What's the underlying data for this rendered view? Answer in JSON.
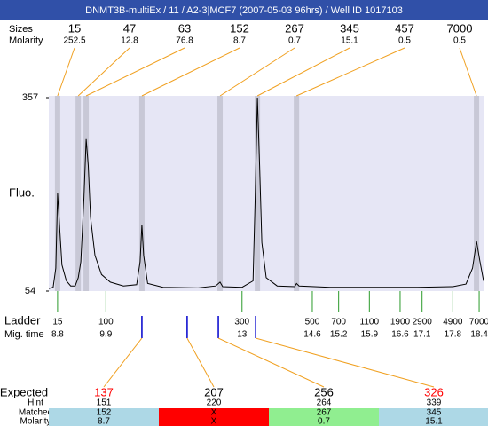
{
  "chart_data": {
    "type": "line",
    "title": "DNMT3B-multiEx / 11  / A2-3|MCF7 (2007-05-03 96hrs) / Well ID 1017103",
    "ylabel": "Fluo.",
    "ylim": [
      54,
      357
    ],
    "yticks": [
      54,
      357
    ],
    "xlim": [
      8.6,
      18.5
    ],
    "color": "#000000",
    "x": [
      8.6,
      8.7,
      8.76,
      8.8,
      8.85,
      8.9,
      9.0,
      9.1,
      9.2,
      9.27,
      9.33,
      9.4,
      9.45,
      9.5,
      9.55,
      9.65,
      9.8,
      10.0,
      10.3,
      10.6,
      10.68,
      10.72,
      10.76,
      10.85,
      11.2,
      12.0,
      12.4,
      12.5,
      12.56,
      13.0,
      13.25,
      13.3,
      13.35,
      13.4,
      13.45,
      13.55,
      13.8,
      14.2,
      14.24,
      14.3,
      15.0,
      16.0,
      17.0,
      17.8,
      18.1,
      18.25,
      18.34,
      18.42,
      18.5
    ],
    "values": [
      58,
      60,
      90,
      207,
      150,
      95,
      70,
      62,
      62,
      75,
      100,
      200,
      292,
      250,
      170,
      110,
      80,
      68,
      62,
      64,
      100,
      158,
      110,
      66,
      60,
      59,
      62,
      68,
      61,
      60,
      70,
      200,
      357,
      250,
      130,
      75,
      62,
      61,
      66,
      62,
      60,
      60,
      60,
      61,
      65,
      90,
      132,
      100,
      70
    ],
    "peaks": {
      "header_labels": [
        "Sizes",
        "Molarity"
      ],
      "sizes": [
        15,
        47,
        63,
        152,
        267,
        345,
        457,
        7000
      ],
      "molarity": [
        252.5,
        12.8,
        76.8,
        8.7,
        0.7,
        15.1,
        0.5,
        0.5
      ],
      "x": [
        8.8,
        9.27,
        9.45,
        10.72,
        12.5,
        13.35,
        14.24,
        18.34
      ]
    },
    "ladder": {
      "labels": [
        "Ladder",
        "Mig. time"
      ],
      "sizes": [
        15,
        100,
        300,
        500,
        700,
        1100,
        1900,
        2900,
        4900,
        7000
      ],
      "mig_time": [
        8.8,
        9.9,
        13,
        14.6,
        15.2,
        15.9,
        16.6,
        17.1,
        17.8,
        18.4
      ]
    },
    "markers": {
      "x": [
        10.72,
        11.75,
        12.46,
        13.31
      ],
      "color": "#0000cc"
    },
    "expected": {
      "row_labels": [
        "Expected",
        "Hint",
        "Matched",
        "Molarity"
      ],
      "expected": [
        137,
        207,
        256,
        326
      ],
      "expected_colors": [
        "#ff0000",
        "#000000",
        "#000000",
        "#ff0000"
      ],
      "hint": [
        151,
        220,
        264,
        339
      ],
      "matched": [
        152,
        "X",
        267,
        345
      ],
      "molarity": [
        8.7,
        "X",
        0.7,
        15.1
      ],
      "cell_colors": [
        "#add8e6",
        "#ff0000",
        "#90ee90",
        "#add8e6"
      ]
    }
  }
}
